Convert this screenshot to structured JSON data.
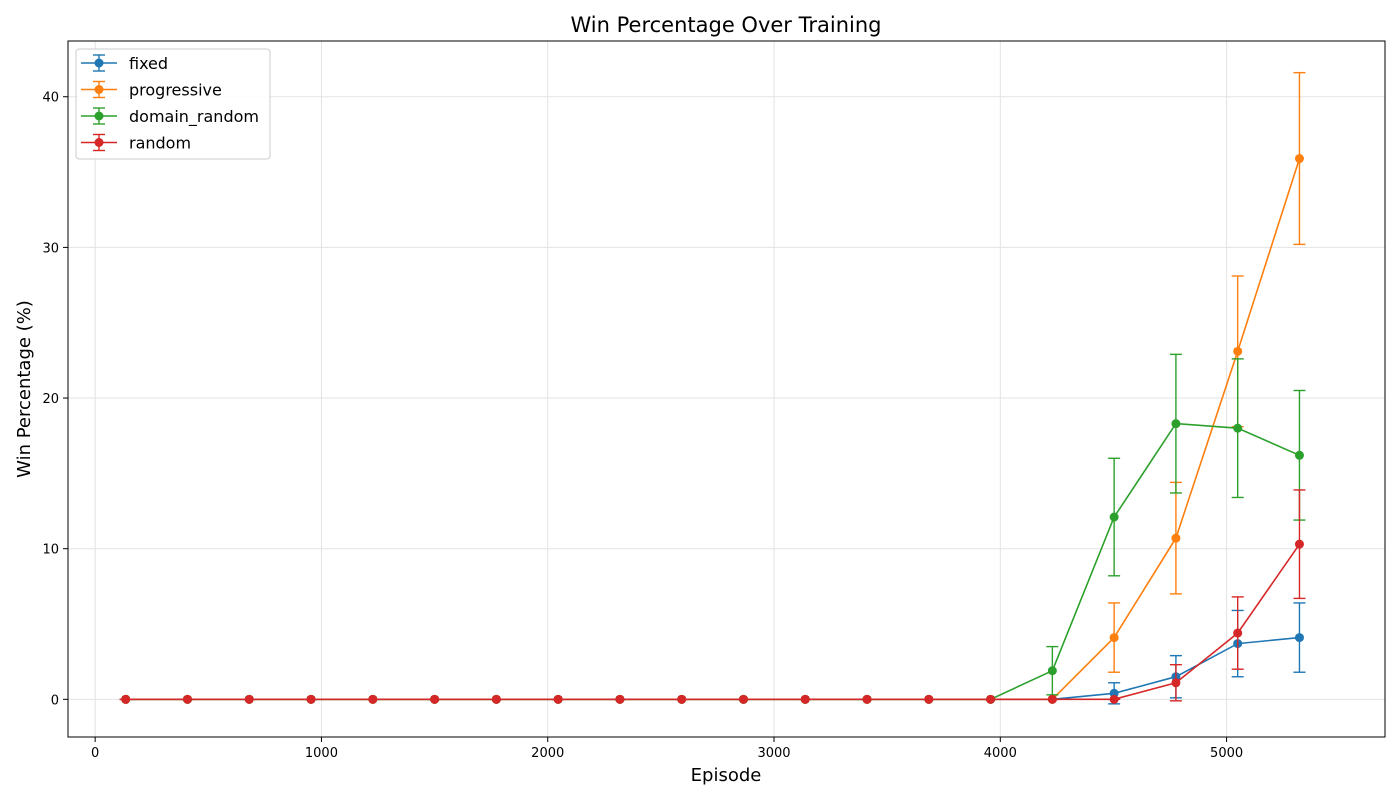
{
  "chart_data": {
    "type": "line",
    "title": "Win Percentage Over Training",
    "xlabel": "Episode",
    "ylabel": "Win Percentage (%)",
    "xlim": [
      -120,
      5700
    ],
    "ylim": [
      -2.5,
      43.7
    ],
    "x_ticks": [
      0,
      1000,
      2000,
      3000,
      4000,
      5000
    ],
    "y_ticks": [
      0,
      10,
      20,
      30,
      40
    ],
    "grid": true,
    "legend_position": "top-left",
    "x": [
      135,
      408,
      681,
      954,
      1227,
      1500,
      1773,
      2046,
      2319,
      2592,
      2865,
      3138,
      3411,
      3684,
      3957,
      4230,
      4503,
      4776,
      5049,
      5322
    ],
    "series": [
      {
        "name": "fixed",
        "color": "#1f77b4",
        "values": [
          0,
          0,
          0,
          0,
          0,
          0,
          0,
          0,
          0,
          0,
          0,
          0,
          0,
          0,
          0,
          0,
          0.4,
          1.5,
          3.7,
          4.1
        ],
        "errors": [
          0,
          0,
          0,
          0,
          0,
          0,
          0,
          0,
          0,
          0,
          0,
          0,
          0,
          0,
          0,
          0,
          0.7,
          1.4,
          2.2,
          2.3
        ]
      },
      {
        "name": "progressive",
        "color": "#ff7f0e",
        "values": [
          0,
          0,
          0,
          0,
          0,
          0,
          0,
          0,
          0,
          0,
          0,
          0,
          0,
          0,
          0,
          0,
          4.1,
          10.7,
          23.1,
          35.9
        ],
        "errors": [
          0,
          0,
          0,
          0,
          0,
          0,
          0,
          0,
          0,
          0,
          0,
          0,
          0,
          0,
          0,
          0,
          2.3,
          3.7,
          5.0,
          5.7
        ]
      },
      {
        "name": "domain_random",
        "color": "#2ca02c",
        "values": [
          0,
          0,
          0,
          0,
          0,
          0,
          0,
          0,
          0,
          0,
          0,
          0,
          0,
          0,
          0,
          1.9,
          12.1,
          18.3,
          18.0,
          16.2
        ],
        "errors": [
          0,
          0,
          0,
          0,
          0,
          0,
          0,
          0,
          0,
          0,
          0,
          0,
          0,
          0,
          0,
          1.6,
          3.9,
          4.6,
          4.6,
          4.3
        ]
      },
      {
        "name": "random",
        "color": "#d62728",
        "values": [
          0,
          0,
          0,
          0,
          0,
          0,
          0,
          0,
          0,
          0,
          0,
          0,
          0,
          0,
          0,
          0,
          0,
          1.1,
          4.4,
          10.3
        ],
        "errors": [
          0,
          0,
          0,
          0,
          0,
          0,
          0,
          0,
          0,
          0,
          0,
          0,
          0,
          0,
          0,
          0,
          0,
          1.2,
          2.4,
          3.6
        ]
      }
    ]
  }
}
